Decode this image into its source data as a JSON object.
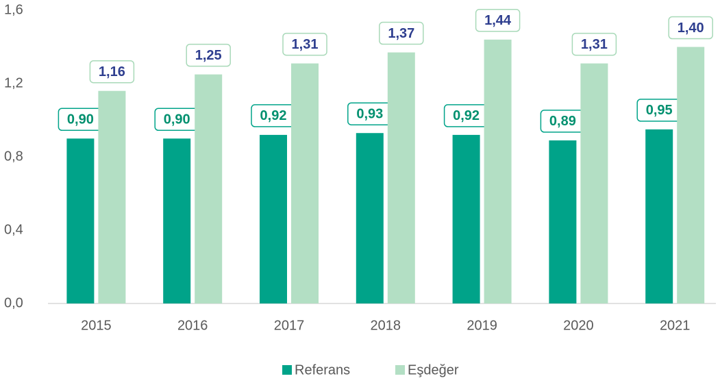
{
  "chart_data": {
    "type": "bar",
    "categories": [
      "2015",
      "2016",
      "2017",
      "2018",
      "2019",
      "2020",
      "2021"
    ],
    "series": [
      {
        "name": "Referans",
        "color": "#00a389",
        "values": [
          0.9,
          0.9,
          0.92,
          0.93,
          0.92,
          0.89,
          0.95
        ],
        "value_labels": [
          "0,90",
          "0,90",
          "0,92",
          "0,93",
          "0,92",
          "0,89",
          "0,95"
        ]
      },
      {
        "name": "Eşdeğer",
        "color": "#b3dfc4",
        "values": [
          1.16,
          1.25,
          1.31,
          1.37,
          1.44,
          1.31,
          1.4
        ],
        "value_labels": [
          "1,16",
          "1,25",
          "1,31",
          "1,37",
          "1,44",
          "1,31",
          "1,40"
        ]
      }
    ],
    "ylim": [
      0,
      1.6
    ],
    "yticks": [
      {
        "value": 0,
        "label": "0,0"
      },
      {
        "value": 0.4,
        "label": "0,4"
      },
      {
        "value": 0.8,
        "label": "0,8"
      },
      {
        "value": 1.2,
        "label": "1,2"
      },
      {
        "value": 1.6,
        "label": "1,6"
      }
    ],
    "grid": false,
    "legend": "bottom"
  }
}
